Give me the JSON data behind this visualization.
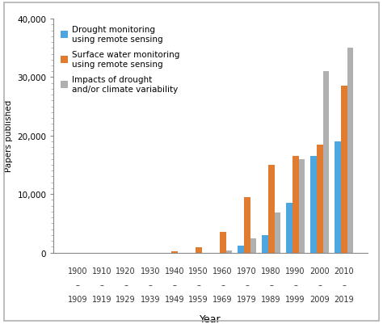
{
  "cat_top": [
    "1900",
    "1910",
    "1920",
    "1930",
    "1940",
    "1950",
    "1960",
    "1970",
    "1980",
    "1990",
    "2000",
    "2010"
  ],
  "cat_bot": [
    "1909",
    "1919",
    "1929",
    "1939",
    "1949",
    "1959",
    "1969",
    "1979",
    "1989",
    "1999",
    "2009",
    "2019"
  ],
  "drought_monitoring": [
    0,
    0,
    0,
    0,
    0,
    0,
    0,
    1200,
    3000,
    8500,
    16500,
    19000
  ],
  "surface_water": [
    0,
    0,
    0,
    0,
    200,
    900,
    3500,
    9500,
    15000,
    16500,
    18500,
    28500
  ],
  "impacts_drought": [
    0,
    0,
    0,
    0,
    0,
    0,
    400,
    2400,
    6800,
    16000,
    31000,
    35000
  ],
  "color_drought": "#4DA6E0",
  "color_surface": "#E07B30",
  "color_impacts": "#B0B0B0",
  "ylabel": "Papers published",
  "xlabel": "Year",
  "ylim": [
    0,
    40000
  ],
  "yticks": [
    0,
    10000,
    20000,
    30000,
    40000
  ],
  "ytick_labels": [
    "0",
    "10,000",
    "20,000",
    "30,000",
    "40,000"
  ],
  "legend_labels": [
    "Drought monitoring\nusing remote sensing",
    "Surface water monitoring\nusing remote sensing",
    "Impacts of drought\nand/or climate variability"
  ],
  "background_color": "#ffffff",
  "outer_border_color": "#b0b0b0"
}
